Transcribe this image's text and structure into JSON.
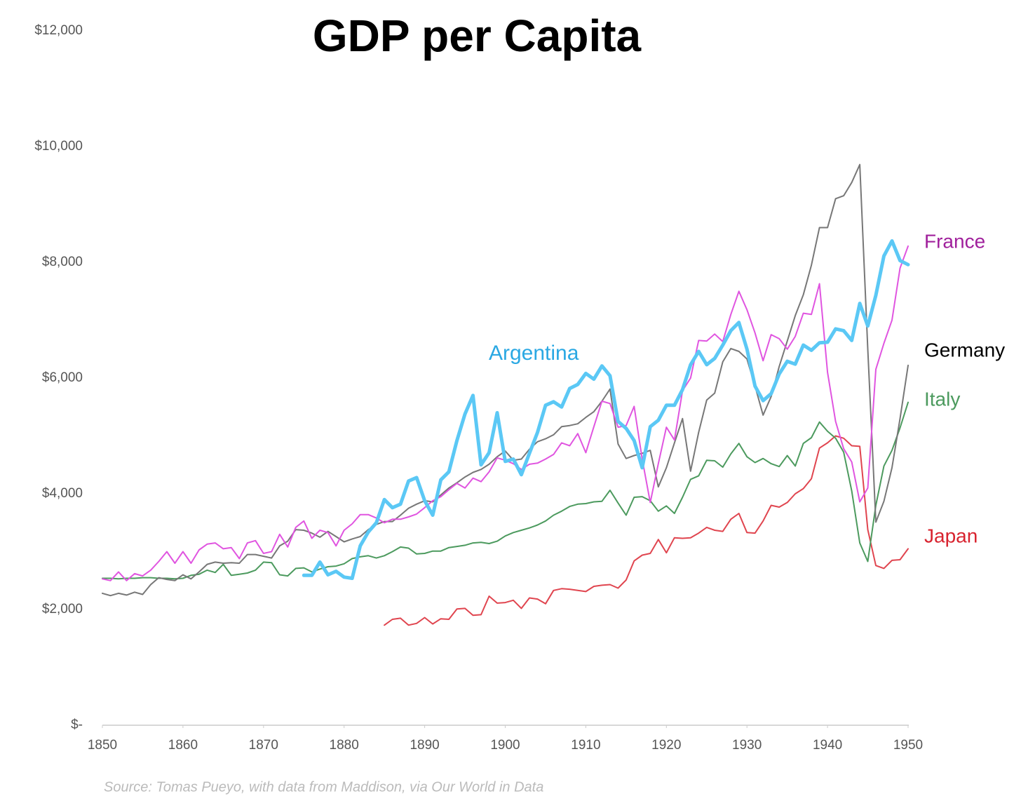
{
  "chart_data": {
    "type": "line",
    "title": "GDP per Capita",
    "source": "Source: Tomas Pueyo, with data from Maddison, via Our World in Data",
    "x": [
      1850,
      1851,
      1852,
      1853,
      1854,
      1855,
      1856,
      1857,
      1858,
      1859,
      1860,
      1861,
      1862,
      1863,
      1864,
      1865,
      1866,
      1867,
      1868,
      1869,
      1870,
      1871,
      1872,
      1873,
      1874,
      1875,
      1876,
      1877,
      1878,
      1879,
      1880,
      1881,
      1882,
      1883,
      1884,
      1885,
      1886,
      1887,
      1888,
      1889,
      1890,
      1891,
      1892,
      1893,
      1894,
      1895,
      1896,
      1897,
      1898,
      1899,
      1900,
      1901,
      1902,
      1903,
      1904,
      1905,
      1906,
      1907,
      1908,
      1909,
      1910,
      1911,
      1912,
      1913,
      1914,
      1915,
      1916,
      1917,
      1918,
      1919,
      1920,
      1921,
      1922,
      1923,
      1924,
      1925,
      1926,
      1927,
      1928,
      1929,
      1930,
      1931,
      1932,
      1933,
      1934,
      1935,
      1936,
      1937,
      1938,
      1939,
      1940,
      1941,
      1942,
      1943,
      1944,
      1945,
      1946,
      1947,
      1948,
      1949,
      1950
    ],
    "xlim": [
      1850,
      1950
    ],
    "xticks": [
      1850,
      1860,
      1870,
      1880,
      1890,
      1900,
      1910,
      1920,
      1930,
      1940,
      1950
    ],
    "ylim": [
      0,
      12000
    ],
    "yticks": [
      {
        "value": 0,
        "label": "$-"
      },
      {
        "value": 2000,
        "label": "$2,000"
      },
      {
        "value": 4000,
        "label": "$4,000"
      },
      {
        "value": 6000,
        "label": "$6,000"
      },
      {
        "value": 8000,
        "label": "$8,000"
      },
      {
        "value": 10000,
        "label": "$10,000"
      },
      {
        "value": 12000,
        "label": "$12,000"
      }
    ],
    "grid": false,
    "series": [
      {
        "name": "Argentina",
        "color": "#5bc8f5",
        "label_color": "#2aa8e3",
        "width": 5,
        "values": [
          null,
          null,
          null,
          null,
          null,
          null,
          null,
          null,
          null,
          null,
          null,
          null,
          null,
          null,
          null,
          null,
          null,
          null,
          null,
          null,
          null,
          null,
          null,
          null,
          null,
          2590,
          2590,
          2820,
          2600,
          2660,
          2560,
          2540,
          3100,
          3340,
          3500,
          3900,
          3760,
          3820,
          4220,
          4280,
          3880,
          3630,
          4240,
          4380,
          4920,
          5380,
          5700,
          4500,
          4710,
          5400,
          4560,
          4600,
          4330,
          4700,
          5060,
          5530,
          5590,
          5500,
          5820,
          5890,
          6080,
          5980,
          6210,
          6040,
          5250,
          5130,
          4920,
          4450,
          5160,
          5270,
          5530,
          5530,
          5800,
          6230,
          6460,
          6230,
          6340,
          6570,
          6820,
          6960,
          6500,
          5860,
          5610,
          5730,
          6070,
          6290,
          6240,
          6570,
          6480,
          6610,
          6620,
          6850,
          6820,
          6650,
          7290,
          6900,
          7430,
          8110,
          8370,
          8030,
          7960
        ]
      },
      {
        "name": "France",
        "color": "#e055e0",
        "label_color": "#a0209c",
        "width": 2,
        "values": [
          2530,
          2500,
          2650,
          2500,
          2620,
          2580,
          2680,
          2830,
          3000,
          2800,
          3000,
          2800,
          3030,
          3130,
          3150,
          3050,
          3070,
          2880,
          3150,
          3190,
          2970,
          3000,
          3300,
          3080,
          3420,
          3530,
          3230,
          3370,
          3330,
          3100,
          3370,
          3480,
          3640,
          3640,
          3580,
          3500,
          3560,
          3560,
          3600,
          3650,
          3760,
          3880,
          3950,
          4070,
          4180,
          4100,
          4270,
          4210,
          4380,
          4620,
          4580,
          4520,
          4420,
          4510,
          4530,
          4600,
          4680,
          4880,
          4830,
          5040,
          4710,
          5160,
          5600,
          5560,
          5150,
          5180,
          5510,
          4600,
          3850,
          4520,
          5150,
          4930,
          5780,
          6000,
          6650,
          6640,
          6760,
          6630,
          7100,
          7500,
          7180,
          6780,
          6300,
          6750,
          6680,
          6500,
          6720,
          7120,
          7100,
          7630,
          6100,
          5250,
          4780,
          4550,
          3860,
          4100,
          6150,
          6600,
          7000,
          7900,
          8280
        ]
      },
      {
        "name": "Germany",
        "color": "#777777",
        "label_color": "#000000",
        "width": 2,
        "values": [
          2280,
          2240,
          2280,
          2250,
          2300,
          2260,
          2430,
          2550,
          2520,
          2500,
          2600,
          2530,
          2650,
          2780,
          2820,
          2800,
          2810,
          2800,
          2950,
          2950,
          2920,
          2890,
          3100,
          3180,
          3380,
          3370,
          3320,
          3250,
          3350,
          3260,
          3170,
          3220,
          3260,
          3380,
          3470,
          3520,
          3520,
          3630,
          3750,
          3820,
          3880,
          3860,
          3980,
          4100,
          4190,
          4290,
          4370,
          4420,
          4510,
          4640,
          4740,
          4580,
          4600,
          4770,
          4900,
          4950,
          5020,
          5160,
          5180,
          5210,
          5320,
          5420,
          5600,
          5810,
          4860,
          4610,
          4660,
          4700,
          4750,
          4120,
          4450,
          4880,
          5300,
          4390,
          5060,
          5620,
          5740,
          6280,
          6510,
          6460,
          6330,
          5860,
          5360,
          5680,
          6200,
          6640,
          7080,
          7440,
          7950,
          8600,
          8600,
          9100,
          9150,
          9380,
          9690,
          6500,
          3510,
          3870,
          4450,
          5300,
          6220
        ]
      },
      {
        "name": "Italy",
        "color": "#4c9a5e",
        "label_color": "#4c9a5e",
        "width": 2,
        "values": [
          2540,
          2540,
          2530,
          2540,
          2540,
          2550,
          2550,
          2540,
          2540,
          2530,
          2540,
          2590,
          2610,
          2680,
          2640,
          2780,
          2590,
          2610,
          2630,
          2680,
          2820,
          2810,
          2600,
          2580,
          2710,
          2720,
          2650,
          2700,
          2740,
          2750,
          2790,
          2880,
          2910,
          2930,
          2890,
          2930,
          3000,
          3080,
          3060,
          2960,
          2970,
          3010,
          3010,
          3070,
          3090,
          3110,
          3150,
          3160,
          3140,
          3180,
          3270,
          3330,
          3370,
          3410,
          3460,
          3530,
          3630,
          3700,
          3780,
          3820,
          3830,
          3860,
          3870,
          4060,
          3840,
          3630,
          3940,
          3950,
          3880,
          3700,
          3790,
          3660,
          3940,
          4250,
          4310,
          4580,
          4570,
          4460,
          4690,
          4870,
          4640,
          4540,
          4610,
          4520,
          4470,
          4660,
          4480,
          4870,
          4970,
          5240,
          5080,
          4960,
          4720,
          4050,
          3150,
          2830,
          3800,
          4480,
          4750,
          5140,
          5580
        ]
      },
      {
        "name": "Japan",
        "color": "#e0454f",
        "label_color": "#d8232f",
        "width": 2,
        "values": [
          null,
          null,
          null,
          null,
          null,
          null,
          null,
          null,
          null,
          null,
          null,
          null,
          null,
          null,
          null,
          null,
          null,
          null,
          null,
          null,
          null,
          null,
          null,
          null,
          null,
          null,
          null,
          null,
          null,
          null,
          null,
          null,
          null,
          null,
          null,
          1730,
          1830,
          1850,
          1730,
          1760,
          1860,
          1750,
          1840,
          1830,
          2010,
          2020,
          1900,
          1910,
          2230,
          2110,
          2120,
          2160,
          2020,
          2200,
          2180,
          2100,
          2330,
          2360,
          2350,
          2330,
          2310,
          2400,
          2420,
          2430,
          2370,
          2510,
          2840,
          2940,
          2970,
          3210,
          2980,
          3240,
          3230,
          3240,
          3320,
          3420,
          3370,
          3350,
          3560,
          3660,
          3330,
          3320,
          3530,
          3800,
          3770,
          3850,
          4000,
          4090,
          4260,
          4790,
          4880,
          5000,
          4960,
          4830,
          4820,
          3380,
          2760,
          2710,
          2850,
          2860,
          3050
        ]
      }
    ]
  }
}
